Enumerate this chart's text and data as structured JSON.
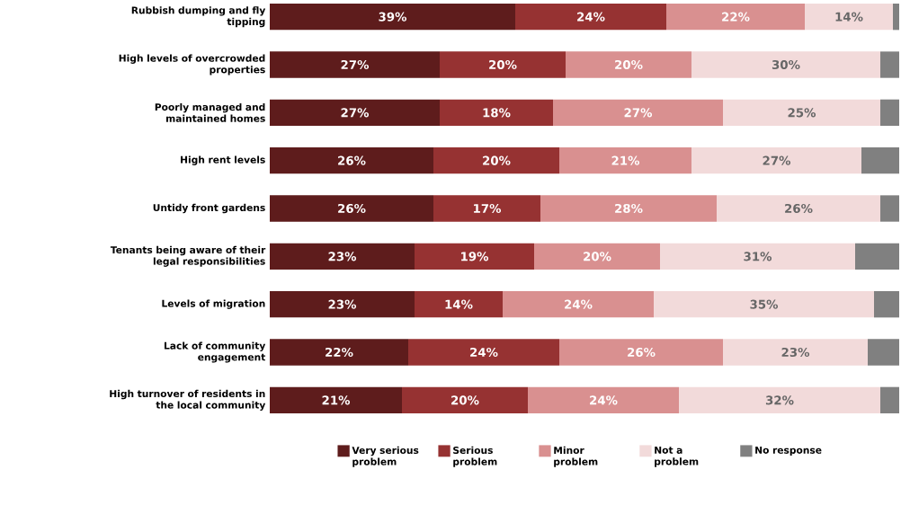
{
  "chart_data": {
    "type": "bar",
    "orientation": "horizontal",
    "stacked": true,
    "legend": "bottom",
    "categories": [
      "Rubbish dumping and fly tipping",
      "High levels of overcrowded properties",
      "Poorly managed and maintained homes",
      "High rent levels",
      "Untidy front gardens",
      "Tenants being aware of their legal responsibilities",
      "Levels of migration",
      "Lack of community engagement",
      "High turnover of residents in the local community"
    ],
    "series": [
      {
        "name": "Very serious problem",
        "color": "#5e1c1c",
        "values": [
          39,
          27,
          27,
          26,
          26,
          23,
          23,
          22,
          21
        ],
        "value_labels": [
          "39%",
          "27%",
          "27%",
          "26%",
          "26%",
          "23%",
          "23%",
          "22%",
          "21%"
        ]
      },
      {
        "name": "Serious problem",
        "color": "#963232",
        "values": [
          24,
          20,
          18,
          20,
          17,
          19,
          14,
          24,
          20
        ],
        "value_labels": [
          "24%",
          "20%",
          "18%",
          "20%",
          "17%",
          "19%",
          "14%",
          "24%",
          "20%"
        ]
      },
      {
        "name": "Minor problem",
        "color": "#d99090",
        "values": [
          22,
          20,
          27,
          21,
          28,
          20,
          24,
          26,
          24
        ],
        "value_labels": [
          "22%",
          "20%",
          "27%",
          "21%",
          "28%",
          "20%",
          "24%",
          "26%",
          "24%"
        ]
      },
      {
        "name": "Not a problem",
        "color": "#f2dada",
        "values": [
          14,
          30,
          25,
          27,
          26,
          31,
          35,
          23,
          32
        ],
        "value_labels": [
          "14%",
          "30%",
          "25%",
          "27%",
          "26%",
          "31%",
          "35%",
          "23%",
          "32%"
        ]
      },
      {
        "name": "No response",
        "color": "#808080",
        "values": [
          1,
          3,
          3,
          6,
          3,
          7,
          4,
          5,
          3
        ]
      }
    ]
  }
}
